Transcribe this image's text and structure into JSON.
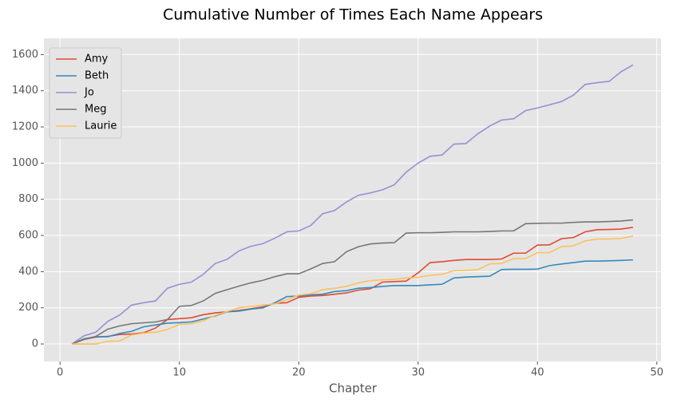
{
  "chart_data": {
    "type": "line",
    "title": "Cumulative Number of Times Each Name Appears",
    "xlabel": "Chapter",
    "x": [
      1,
      2,
      3,
      4,
      5,
      6,
      7,
      8,
      9,
      10,
      11,
      12,
      13,
      14,
      15,
      16,
      17,
      18,
      19,
      20,
      21,
      22,
      23,
      24,
      25,
      26,
      27,
      28,
      29,
      30,
      31,
      32,
      33,
      34,
      35,
      36,
      37,
      38,
      39,
      40,
      41,
      42,
      43,
      44,
      45,
      46,
      47,
      48
    ],
    "series": [
      {
        "name": "Amy",
        "color": "#E24A33",
        "values": [
          0,
          25,
          38,
          42,
          52,
          55,
          62,
          88,
          135,
          140,
          145,
          162,
          172,
          178,
          185,
          195,
          205,
          225,
          228,
          258,
          265,
          268,
          275,
          282,
          298,
          305,
          342,
          345,
          348,
          393,
          450,
          455,
          462,
          467,
          467,
          467,
          470,
          502,
          502,
          547,
          548,
          582,
          588,
          620,
          632,
          633,
          635,
          645
        ]
      },
      {
        "name": "Beth",
        "color": "#348ABD",
        "values": [
          0,
          28,
          40,
          40,
          58,
          70,
          95,
          105,
          115,
          118,
          122,
          138,
          155,
          178,
          182,
          193,
          200,
          228,
          262,
          265,
          272,
          275,
          290,
          295,
          308,
          312,
          318,
          323,
          323,
          323,
          327,
          330,
          365,
          370,
          372,
          375,
          412,
          413,
          413,
          414,
          433,
          442,
          450,
          458,
          458,
          460,
          462,
          465
        ]
      },
      {
        "name": "Jo",
        "color": "#988ED5",
        "values": [
          0,
          45,
          65,
          125,
          160,
          215,
          228,
          238,
          308,
          330,
          342,
          385,
          445,
          468,
          515,
          540,
          555,
          585,
          620,
          625,
          655,
          720,
          738,
          785,
          822,
          835,
          852,
          880,
          950,
          1000,
          1038,
          1045,
          1105,
          1108,
          1162,
          1205,
          1238,
          1245,
          1290,
          1305,
          1322,
          1340,
          1375,
          1435,
          1445,
          1452,
          1505,
          1543
        ]
      },
      {
        "name": "Meg",
        "color": "#777777",
        "values": [
          0,
          25,
          42,
          82,
          100,
          112,
          117,
          122,
          135,
          208,
          213,
          238,
          280,
          300,
          320,
          338,
          352,
          372,
          388,
          388,
          415,
          445,
          455,
          510,
          538,
          553,
          558,
          560,
          613,
          615,
          615,
          617,
          620,
          620,
          620,
          622,
          625,
          625,
          665,
          667,
          668,
          668,
          672,
          675,
          675,
          677,
          680,
          686
        ]
      },
      {
        "name": "Laurie",
        "color": "#FBC15E",
        "values": [
          0,
          0,
          0,
          15,
          17,
          50,
          60,
          65,
          80,
          108,
          112,
          128,
          158,
          180,
          200,
          208,
          215,
          222,
          245,
          270,
          278,
          300,
          308,
          318,
          338,
          350,
          355,
          357,
          365,
          368,
          380,
          385,
          405,
          407,
          410,
          443,
          445,
          472,
          472,
          505,
          505,
          538,
          542,
          570,
          580,
          580,
          583,
          597
        ]
      }
    ],
    "xlim": [
      -1.35,
      50.35
    ],
    "ylim": [
      -97,
      1690
    ],
    "xticks": [
      0,
      10,
      20,
      30,
      40,
      50
    ],
    "yticks": [
      0,
      200,
      400,
      600,
      800,
      1000,
      1200,
      1400,
      1600
    ],
    "grid": true,
    "legend": "upper-left"
  }
}
